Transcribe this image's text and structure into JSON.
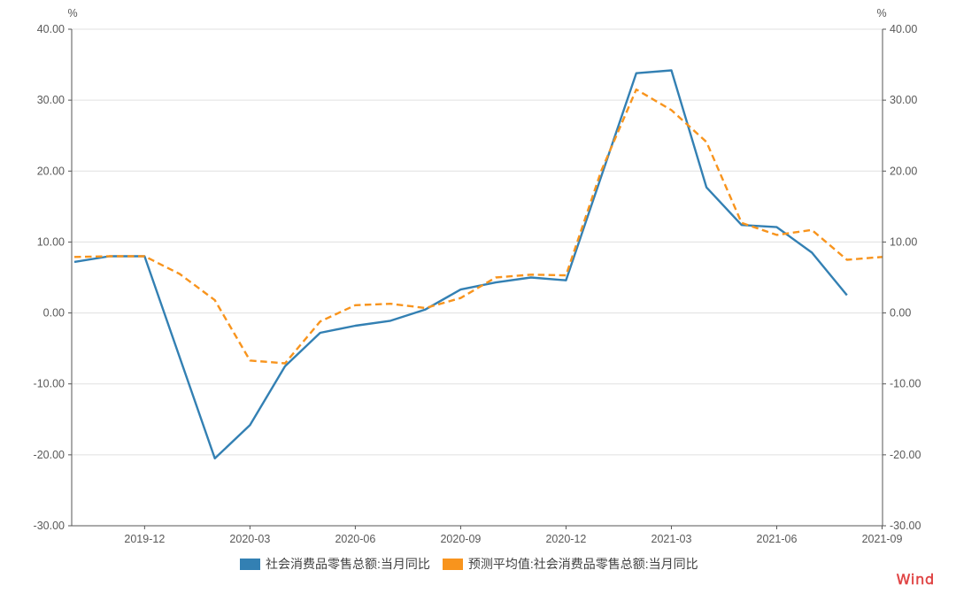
{
  "chart_data": {
    "type": "line",
    "x": [
      "2019-10",
      "2019-11",
      "2019-12",
      "2020-01",
      "2020-02",
      "2020-03",
      "2020-04",
      "2020-05",
      "2020-06",
      "2020-07",
      "2020-08",
      "2020-09",
      "2020-10",
      "2020-11",
      "2020-12",
      "2021-01",
      "2021-02",
      "2021-03",
      "2021-04",
      "2021-05",
      "2021-06",
      "2021-07",
      "2021-08",
      "2021-09"
    ],
    "x_ticks": [
      {
        "index": 2,
        "label": "2019-12"
      },
      {
        "index": 5,
        "label": "2020-03"
      },
      {
        "index": 8,
        "label": "2020-06"
      },
      {
        "index": 11,
        "label": "2020-09"
      },
      {
        "index": 14,
        "label": "2020-12"
      },
      {
        "index": 17,
        "label": "2021-03"
      },
      {
        "index": 20,
        "label": "2021-06"
      },
      {
        "index": 23,
        "label": "2021-09"
      }
    ],
    "ylim": [
      -30,
      40
    ],
    "y_tick_values": [
      40,
      30,
      20,
      10,
      0,
      -10,
      -20,
      -30
    ],
    "y_tick_labels": [
      "40.00",
      "30.00",
      "20.00",
      "10.00",
      "0.00",
      "-10.00",
      "-20.00",
      "-30.00"
    ],
    "y_axis_unit_left": "%",
    "y_axis_unit_right": "%",
    "grid": true,
    "legend_position": "bottom",
    "series": [
      {
        "name": "社会消费品零售总额:当月同比",
        "color": "#3380B3",
        "line_style": "solid",
        "values": [
          7.2,
          8.0,
          8.0,
          null,
          -20.5,
          -15.8,
          -7.5,
          -2.8,
          -1.8,
          -1.1,
          0.5,
          3.3,
          4.3,
          5.0,
          4.6,
          null,
          33.8,
          34.2,
          17.7,
          12.4,
          12.1,
          8.5,
          2.5,
          null
        ]
      },
      {
        "name": "预测平均值:社会消费品零售总额:当月同比",
        "color": "#F8941D",
        "line_style": "dashed",
        "values": [
          7.9,
          8.0,
          8.0,
          5.5,
          1.8,
          -6.7,
          -7.1,
          -1.2,
          1.1,
          1.3,
          0.7,
          2.1,
          5.0,
          5.4,
          5.3,
          20.0,
          31.5,
          28.6,
          24.1,
          12.7,
          11.0,
          11.7,
          7.5,
          7.9
        ]
      }
    ]
  },
  "watermark": {
    "label": "Wind",
    "color": "#E04545"
  },
  "style": {
    "grid_color": "#E0E0E0",
    "axis_color": "#555555",
    "tick_label_color": "#595959"
  }
}
